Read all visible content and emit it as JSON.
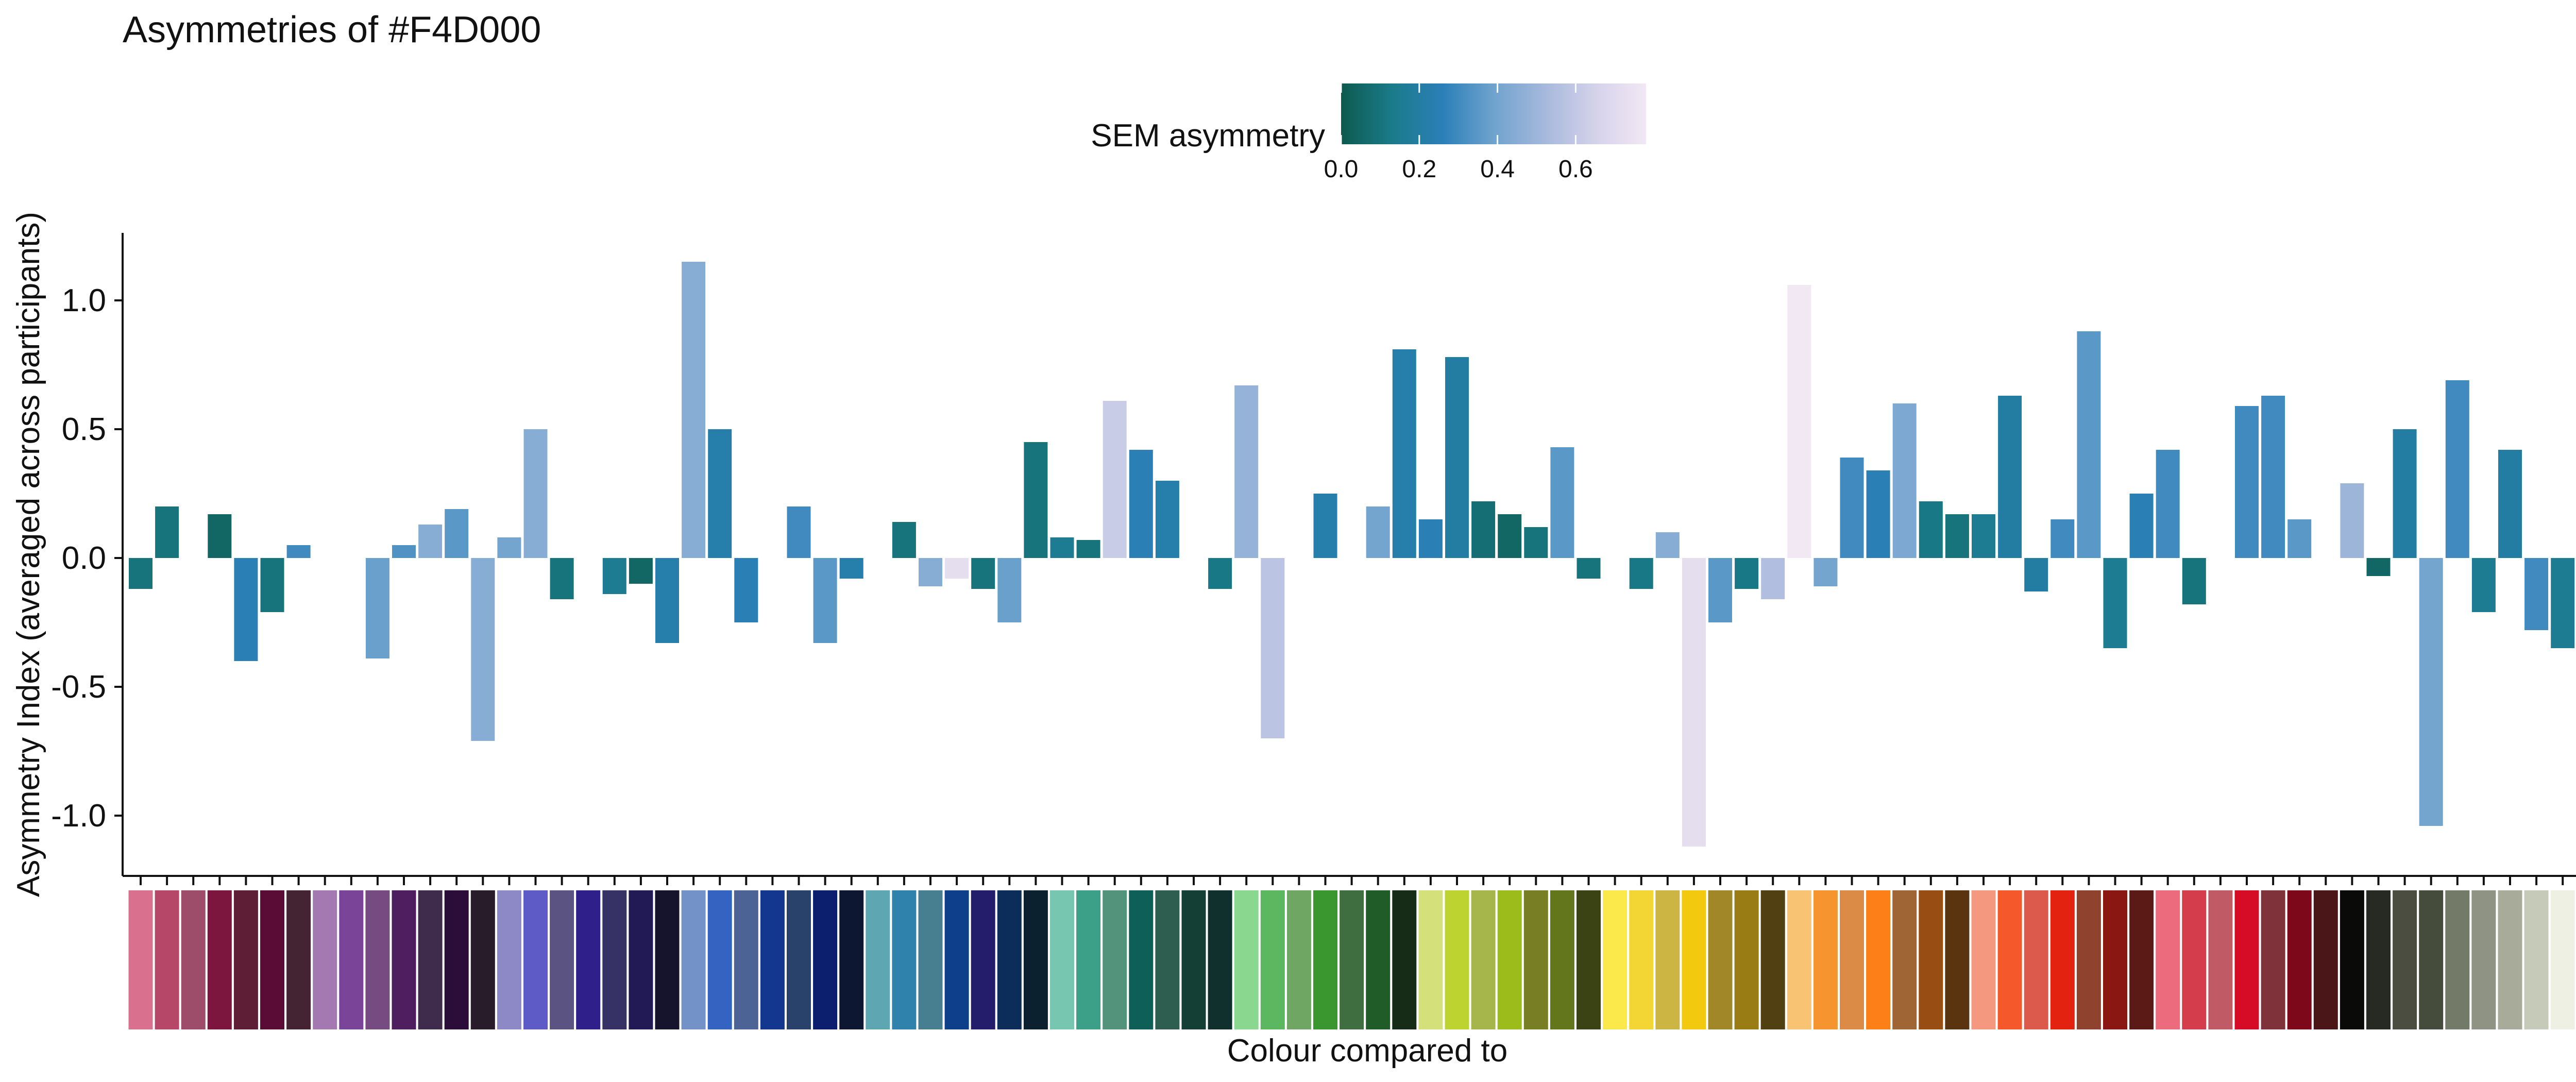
{
  "chart_data": {
    "type": "bar",
    "title": "Asymmetries of #F4D000",
    "xlabel": "Colour compared to",
    "ylabel": "Asymmetry Index (averaged across participants)",
    "ylim": [
      -1.24,
      1.25
    ],
    "yticks": [
      1.0,
      0.5,
      0.0,
      -0.5,
      -1.0
    ],
    "ytick_labels": [
      "1.0",
      "0.5",
      "0.0",
      "-0.5",
      "-1.0"
    ],
    "grid": false,
    "legend": {
      "title": "SEM asymmetry",
      "position": "top",
      "range": [
        0,
        0.78
      ],
      "ticks": [
        0.0,
        0.2,
        0.4,
        0.6
      ],
      "tick_labels": [
        "0.0",
        "0.2",
        "0.4",
        "0.6"
      ],
      "gradient": [
        "#0d5a4e",
        "#1a7b8a",
        "#2b7fb8",
        "#6fa3ce",
        "#a6b8dc",
        "#d4d2ea",
        "#f2e8f4"
      ]
    },
    "categories": [
      "#d9718e",
      "#b64768",
      "#9d4c69",
      "#7d163f",
      "#5d1e36",
      "#5a0c36",
      "#442433",
      "#a479b1",
      "#7a4498",
      "#754b82",
      "#4f1e5e",
      "#3f2b4b",
      "#2c0d3a",
      "#281b2a",
      "#8d88c6",
      "#5f5bc6",
      "#5b5483",
      "#2e1f8b",
      "#373265",
      "#211a55",
      "#16132c",
      "#7292c8",
      "#3563c1",
      "#4c6495",
      "#13378e",
      "#29426c",
      "#0b1f6e",
      "#0e1732",
      "#5fa6b3",
      "#2e82ab",
      "#477f90",
      "#0d3f8a",
      "#231d6c",
      "#0c2c59",
      "#0c2130",
      "#76c6b0",
      "#3c9f88",
      "#54937b",
      "#0d5f58",
      "#2e5e50",
      "#133f35",
      "#0f302c",
      "#8ad88f",
      "#5cb860",
      "#6fa664",
      "#3a962f",
      "#3f6e40",
      "#1f5c27",
      "#172c16",
      "#d4e07a",
      "#bdd330",
      "#a6b64a",
      "#9cbc1b",
      "#787e24",
      "#63761b",
      "#3b4213",
      "#fbe94c",
      "#f3d634",
      "#ccb543",
      "#f2c90f",
      "#a18727",
      "#9a7c14",
      "#504012",
      "#f8c372",
      "#f69430",
      "#db8b45",
      "#fc7f17",
      "#9f6534",
      "#984d13",
      "#59340f",
      "#f49880",
      "#f5592b",
      "#dc5a4b",
      "#e3230f",
      "#8f432f",
      "#8a1711",
      "#5b1a16",
      "#ec6b7c",
      "#d43d4b",
      "#c05a65",
      "#d60c27",
      "#7f323a",
      "#7c081a",
      "#4a1617",
      "#0a0a08",
      "#262a22",
      "#4a4d40",
      "#454c3c",
      "#737a67",
      "#8e9383",
      "#a8aa9a",
      "#c6cab8",
      "#eef0e3"
    ],
    "values": [
      -0.12,
      0.2,
      null,
      0.17,
      -0.4,
      -0.21,
      0.05,
      null,
      null,
      -0.39,
      0.05,
      0.13,
      0.19,
      -0.71,
      0.08,
      0.5,
      -0.16,
      null,
      -0.14,
      -0.1,
      -0.33,
      1.15,
      0.5,
      -0.25,
      null,
      0.2,
      -0.33,
      -0.08,
      null,
      0.14,
      -0.11,
      -0.08,
      -0.12,
      -0.25,
      0.45,
      0.08,
      0.07,
      0.61,
      0.42,
      0.3,
      null,
      -0.12,
      0.67,
      -0.7,
      null,
      0.25,
      null,
      0.2,
      0.81,
      0.15,
      0.78,
      0.22,
      0.17,
      0.12,
      0.43,
      -0.08,
      null,
      -0.12,
      0.1,
      -1.12,
      -0.25,
      -0.12,
      -0.16,
      1.06,
      -0.11,
      0.39,
      0.34,
      0.6,
      0.22,
      0.17,
      0.17,
      0.63,
      -0.13,
      0.15,
      0.88,
      -0.35,
      0.25,
      0.42,
      -0.18,
      null,
      0.59,
      0.63,
      0.15,
      null,
      0.29,
      -0.07,
      0.5,
      -1.04,
      0.69,
      -0.21,
      0.42,
      -0.28,
      -0.35
    ],
    "sem": [
      0.1,
      0.1,
      null,
      0.05,
      0.25,
      0.1,
      0.3,
      null,
      null,
      0.38,
      0.33,
      0.45,
      0.35,
      0.45,
      0.4,
      0.45,
      0.1,
      null,
      0.15,
      0.05,
      0.22,
      0.45,
      0.22,
      0.25,
      null,
      0.3,
      0.35,
      0.22,
      null,
      0.1,
      0.45,
      0.72,
      0.1,
      0.38,
      0.1,
      0.15,
      0.1,
      0.62,
      0.25,
      0.22,
      null,
      0.12,
      0.48,
      0.58,
      null,
      0.22,
      null,
      0.4,
      0.22,
      0.25,
      0.2,
      0.08,
      0.05,
      0.1,
      0.35,
      0.1,
      null,
      0.12,
      0.45,
      0.72,
      0.35,
      0.12,
      0.55,
      0.78,
      0.4,
      0.3,
      0.25,
      0.42,
      0.12,
      0.1,
      0.15,
      0.2,
      0.2,
      0.3,
      0.35,
      0.15,
      0.25,
      0.3,
      0.1,
      null,
      0.3,
      0.3,
      0.35,
      null,
      0.5,
      0.05,
      0.2,
      0.4,
      0.3,
      0.15,
      0.2,
      0.3,
      0.15
    ]
  }
}
